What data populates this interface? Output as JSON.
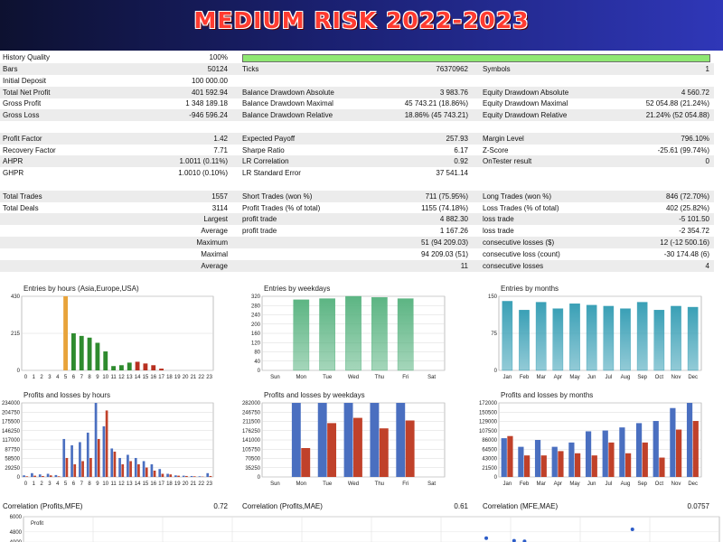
{
  "banner": {
    "title": "MEDIUM RISK 2022-2023"
  },
  "report": {
    "history_quality": {
      "label": "History Quality",
      "value": "100%",
      "bar_fraction": 1.0
    },
    "rows": [
      {
        "cells": [
          "Bars",
          "50124",
          "Ticks",
          "76370962",
          "Symbols",
          "1"
        ]
      },
      {
        "cells": [
          "Initial Deposit",
          "100 000.00",
          "",
          "",
          "",
          ""
        ]
      },
      {
        "cells": [
          "Total Net Profit",
          "401 592.94",
          "Balance Drawdown Absolute",
          "3 983.76",
          "Equity Drawdown Absolute",
          "4 560.72"
        ]
      },
      {
        "cells": [
          "Gross Profit",
          "1 348 189.18",
          "Balance Drawdown Maximal",
          "45 743.21 (18.86%)",
          "Equity Drawdown Maximal",
          "52 054.88 (21.24%)"
        ]
      },
      {
        "cells": [
          "Gross Loss",
          "-946 596.24",
          "Balance Drawdown Relative",
          "18.86% (45 743.21)",
          "Equity Drawdown Relative",
          "21.24% (52 054.88)"
        ]
      },
      {
        "cells": [
          "",
          "",
          "",
          "",
          "",
          ""
        ]
      },
      {
        "cells": [
          "Profit Factor",
          "1.42",
          "Expected Payoff",
          "257.93",
          "Margin Level",
          "796.10%"
        ]
      },
      {
        "cells": [
          "Recovery Factor",
          "7.71",
          "Sharpe Ratio",
          "6.17",
          "Z-Score",
          "-25.61 (99.74%)"
        ]
      },
      {
        "cells": [
          "AHPR",
          "1.0011 (0.11%)",
          "LR Correlation",
          "0.92",
          "OnTester result",
          "0"
        ]
      },
      {
        "cells": [
          "GHPR",
          "1.0010 (0.10%)",
          "LR Standard Error",
          "37 541.14",
          "",
          ""
        ]
      },
      {
        "cells": [
          "",
          "",
          "",
          "",
          "",
          ""
        ]
      },
      {
        "cells": [
          "Total Trades",
          "1557",
          "Short Trades (won %)",
          "711 (75.95%)",
          "Long Trades (won %)",
          "846 (72.70%)"
        ]
      },
      {
        "cells": [
          "Total Deals",
          "3114",
          "Profit Trades (% of total)",
          "1155 (74.18%)",
          "Loss Trades (% of total)",
          "402 (25.82%)"
        ]
      },
      {
        "cells": [
          "",
          "Largest",
          "profit trade",
          "4 882.30",
          "loss trade",
          "-5 101.50"
        ]
      },
      {
        "cells": [
          "",
          "Average",
          "profit trade",
          "1 167.26",
          "loss trade",
          "-2 354.72"
        ]
      },
      {
        "cells": [
          "",
          "Maximum",
          "",
          "51 (94 209.03)",
          "consecutive losses ($)",
          "12 (-12 500.16)"
        ]
      },
      {
        "cells": [
          "",
          "Maximal",
          "",
          "94 209.03 (51)",
          "consecutive loss (count)",
          "-30 174.48 (6)"
        ]
      },
      {
        "cells": [
          "",
          "Average",
          "",
          "11",
          "consecutive losses",
          "4"
        ]
      }
    ]
  },
  "correlation": {
    "items": [
      {
        "label": "Correlation (Profits,MFE)",
        "value": "0.72"
      },
      {
        "label": "Correlation (Profits,MAE)",
        "value": "0.61"
      },
      {
        "label": "Correlation (MFE,MAE)",
        "value": "0.0757"
      }
    ]
  },
  "chart_data": [
    {
      "type": "bar",
      "title": "Entries by hours (Asia,Europe,USA)",
      "categories": [
        "0",
        "1",
        "2",
        "3",
        "4",
        "5",
        "6",
        "7",
        "8",
        "9",
        "10",
        "11",
        "12",
        "13",
        "14",
        "15",
        "16",
        "17",
        "18",
        "19",
        "20",
        "21",
        "22",
        "23"
      ],
      "values": [
        0,
        0,
        0,
        0,
        0,
        430,
        215,
        200,
        190,
        160,
        110,
        25,
        30,
        45,
        50,
        40,
        30,
        10,
        0,
        0,
        0,
        0,
        0,
        0
      ],
      "colors": [
        "#e8a33a",
        "#e8a33a",
        "#e8a33a",
        "#e8a33a",
        "#e8a33a",
        "#e8a33a",
        "#2e8b2e",
        "#2e8b2e",
        "#2e8b2e",
        "#2e8b2e",
        "#2e8b2e",
        "#2e8b2e",
        "#2e8b2e",
        "#2e8b2e",
        "#b83020",
        "#b83020",
        "#b83020",
        "#b83020",
        "#b83020",
        "#b83020",
        "#b83020",
        "#b83020",
        "#b83020",
        "#b83020"
      ],
      "ylim": [
        0,
        430
      ],
      "yticks": [
        0,
        215,
        430
      ]
    },
    {
      "type": "bar",
      "title": "Entries by weekdays",
      "categories": [
        "Sun",
        "Mon",
        "Tue",
        "Wed",
        "Thu",
        "Fri",
        "Sat"
      ],
      "values": [
        0,
        305,
        310,
        320,
        315,
        310,
        0
      ],
      "color": "#5cb583",
      "ylim": [
        0,
        320
      ],
      "yticks": [
        0,
        40,
        80,
        120,
        160,
        200,
        240,
        280,
        320
      ]
    },
    {
      "type": "bar",
      "title": "Entries by months",
      "categories": [
        "Jan",
        "Feb",
        "Mar",
        "Apr",
        "May",
        "Jun",
        "Jul",
        "Aug",
        "Sep",
        "Oct",
        "Nov",
        "Dec"
      ],
      "values": [
        140,
        122,
        138,
        125,
        135,
        132,
        130,
        125,
        138,
        122,
        130,
        128
      ],
      "color": "#3aa0b6",
      "ylim": [
        0,
        150
      ],
      "yticks": [
        0,
        75,
        150
      ]
    },
    {
      "type": "bar",
      "title": "Profits and losses by hours",
      "categories": [
        "0",
        "1",
        "2",
        "3",
        "4",
        "5",
        "6",
        "7",
        "8",
        "9",
        "10",
        "11",
        "12",
        "13",
        "14",
        "15",
        "16",
        "17",
        "18",
        "19",
        "20",
        "21",
        "22",
        "23"
      ],
      "series": [
        {
          "name": "profits",
          "color": "#4a6fc0",
          "values": [
            5000,
            12000,
            8000,
            10000,
            6000,
            120000,
            100000,
            110000,
            140000,
            234000,
            160000,
            90000,
            60000,
            70000,
            60000,
            50000,
            40000,
            25000,
            10000,
            5000,
            4000,
            3000,
            2000,
            12000
          ]
        },
        {
          "name": "losses",
          "color": "#c0412a",
          "values": [
            2000,
            4000,
            3000,
            5000,
            2000,
            60000,
            40000,
            50000,
            60000,
            120000,
            210000,
            80000,
            40000,
            50000,
            40000,
            30000,
            20000,
            10000,
            8000,
            4000,
            3000,
            2000,
            1000,
            3000
          ]
        }
      ],
      "ylim": [
        0,
        234000
      ],
      "yticks": [
        0,
        29250,
        58500,
        87750,
        117000,
        146250,
        175500,
        204750,
        234000
      ]
    },
    {
      "type": "bar",
      "title": "Profits and losses by weekdays",
      "categories": [
        "Sun",
        "Mon",
        "Tue",
        "Wed",
        "Thu",
        "Fri",
        "Sat"
      ],
      "series": [
        {
          "name": "profits",
          "color": "#4a6fc0",
          "values": [
            0,
            282000,
            282000,
            282000,
            282000,
            282000,
            0
          ]
        },
        {
          "name": "losses",
          "color": "#c0412a",
          "values": [
            0,
            110000,
            205000,
            225000,
            185000,
            215000,
            0
          ]
        }
      ],
      "ylim": [
        0,
        282000
      ],
      "yticks": [
        0,
        35250,
        70500,
        105750,
        141000,
        176250,
        211500,
        246750,
        282000
      ]
    },
    {
      "type": "bar",
      "title": "Profits and losses by months",
      "categories": [
        "Jan",
        "Feb",
        "Mar",
        "Apr",
        "May",
        "Jun",
        "Jul",
        "Aug",
        "Sep",
        "Oct",
        "Nov",
        "Dec"
      ],
      "series": [
        {
          "name": "profits",
          "color": "#4a6fc0",
          "values": [
            90000,
            70000,
            86000,
            70000,
            80000,
            106000,
            108000,
            115000,
            125000,
            130000,
            160000,
            172000
          ]
        },
        {
          "name": "losses",
          "color": "#c0412a",
          "values": [
            95000,
            50000,
            50000,
            60000,
            55000,
            50000,
            80000,
            55000,
            80000,
            45000,
            110000,
            130000
          ]
        }
      ],
      "ylim": [
        0,
        172000
      ],
      "yticks": [
        0,
        21500,
        43000,
        64500,
        86000,
        107500,
        129000,
        150500,
        172000
      ]
    },
    {
      "type": "scatter",
      "title": "Profit",
      "points": [
        [
          0.665,
          4300
        ],
        [
          0.705,
          4100
        ],
        [
          0.72,
          4050
        ],
        [
          0.875,
          5000
        ]
      ],
      "ylim": [
        4000,
        6000
      ],
      "yticks": [
        4000,
        4800,
        6000
      ]
    }
  ]
}
